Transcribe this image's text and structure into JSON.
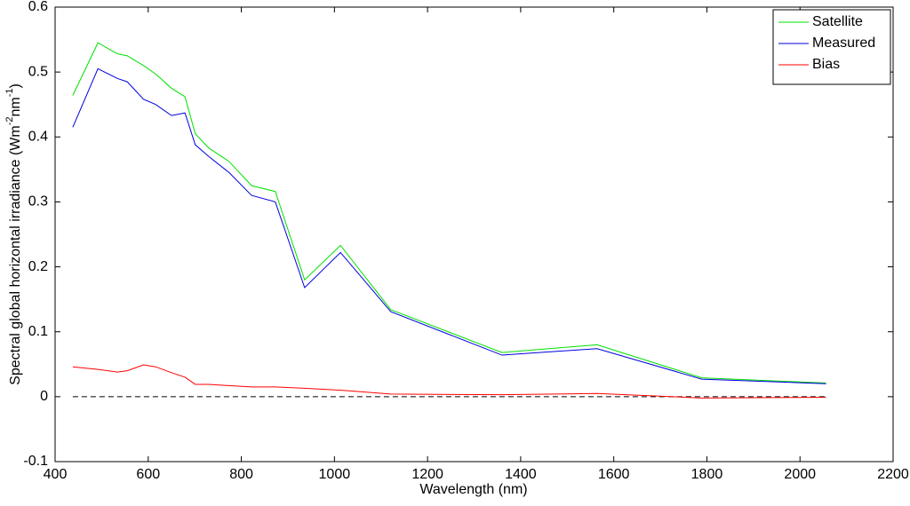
{
  "chart_data": {
    "type": "line",
    "x_label": "Wavelength (nm)",
    "y_label": {
      "text": "Spectral global horizontal irradiance (Wm",
      "sup1": "-2",
      "mid": "nm",
      "sup2": "-1",
      "end": ")"
    },
    "x": [
      438,
      492,
      534,
      555,
      590,
      616,
      650,
      679,
      701,
      730,
      774,
      822,
      873,
      936,
      1013,
      1121,
      1360,
      1564,
      1789,
      2056
    ],
    "series": [
      {
        "name": "Satellite",
        "color": "#00e000",
        "values": [
          0.464,
          0.545,
          0.528,
          0.525,
          0.51,
          0.497,
          0.475,
          0.462,
          0.405,
          0.383,
          0.362,
          0.325,
          0.316,
          0.18,
          0.233,
          0.134,
          0.068,
          0.08,
          0.029,
          0.021
        ]
      },
      {
        "name": "Measured",
        "color": "#0000e0",
        "values": [
          0.415,
          0.505,
          0.49,
          0.485,
          0.458,
          0.45,
          0.433,
          0.437,
          0.388,
          0.37,
          0.345,
          0.31,
          0.3,
          0.168,
          0.222,
          0.131,
          0.064,
          0.074,
          0.027,
          0.02
        ]
      },
      {
        "name": "Bias",
        "color": "#ff0000",
        "values": [
          0.046,
          0.042,
          0.038,
          0.04,
          0.049,
          0.046,
          0.037,
          0.03,
          0.019,
          0.019,
          0.017,
          0.015,
          0.015,
          0.013,
          0.01,
          0.004,
          0.003,
          0.005,
          -0.002,
          -0.001
        ]
      }
    ],
    "xlim": [
      400,
      2200
    ],
    "xticks": [
      400,
      600,
      800,
      1000,
      1200,
      1400,
      1600,
      1800,
      2000,
      2200
    ],
    "ylim": [
      -0.1,
      0.6
    ],
    "yticks": [
      -0.1,
      0,
      0.1,
      0.2,
      0.3,
      0.4,
      0.5,
      0.6
    ],
    "zero_line": true,
    "legend": "upper right"
  }
}
